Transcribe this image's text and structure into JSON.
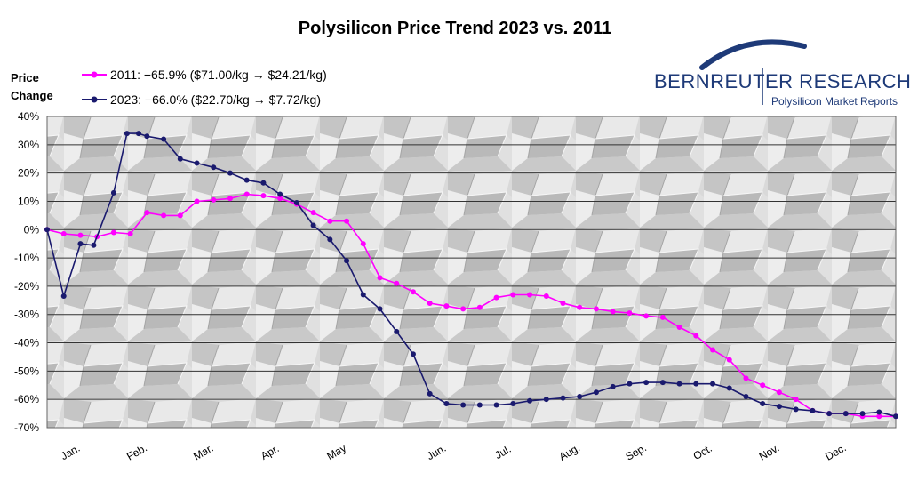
{
  "chart_data": {
    "type": "line",
    "title": "Polysilicon Price Trend 2023 vs. 2011",
    "ylabel_line1": "Price",
    "ylabel_line2": "Change",
    "xlabel": "",
    "x_unit": "week of year (1-52)",
    "y_unit": "percent",
    "ylim": [
      -70,
      40
    ],
    "xlim": [
      1,
      52
    ],
    "grid": true,
    "legend_position": "top-left",
    "ytick_labels": [
      "40%",
      "30%",
      "20%",
      "10%",
      "0%",
      "-10%",
      "-20%",
      "-30%",
      "-40%",
      "-50%",
      "-60%",
      "-70%"
    ],
    "ytick_values": [
      40,
      30,
      20,
      10,
      0,
      -10,
      -20,
      -30,
      -40,
      -50,
      -60,
      -70
    ],
    "categories": [
      "Jan.",
      "Feb.",
      "Mar.",
      "Apr.",
      "May",
      "Jun.",
      "Jul.",
      "Aug.",
      "Sep.",
      "Oct.",
      "Nov.",
      "Dec."
    ],
    "category_positions": [
      2.5,
      6.5,
      10.5,
      14.5,
      18.5,
      24.5,
      28.5,
      32.5,
      36.5,
      40.5,
      44.5,
      48.5
    ],
    "series": [
      {
        "name": "2011",
        "legend": "2011: −65.9% ($71.00/kg → $24.21/kg)",
        "color": "#ff00ff",
        "x": [
          1,
          2,
          3,
          4,
          5,
          6,
          7,
          8,
          9,
          10,
          11,
          12,
          13,
          14,
          15,
          16,
          17,
          18,
          19,
          20,
          21,
          22,
          23,
          24,
          25,
          26,
          27,
          28,
          29,
          30,
          31,
          32,
          33,
          34,
          35,
          36,
          37,
          38,
          39,
          40,
          41,
          42,
          43,
          44,
          45,
          46,
          47,
          48,
          49,
          50,
          51,
          52
        ],
        "values": [
          0,
          -1.5,
          -2,
          -2.5,
          -1,
          -1.5,
          6,
          5,
          5,
          10,
          10.5,
          11,
          12.5,
          12,
          11,
          9,
          6,
          3,
          3,
          -5,
          -17,
          -19,
          -22,
          -26,
          -27,
          -28,
          -27.5,
          -24,
          -23,
          -23,
          -23.5,
          -26,
          -27.5,
          -28,
          -29,
          -29.5,
          -30.5,
          -31,
          -34.5,
          -37.5,
          -42.5,
          -46,
          -52.5,
          -55,
          -57.5,
          -60,
          -64,
          -65,
          -65,
          -66,
          -66,
          -66
        ]
      },
      {
        "name": "2023",
        "legend": "2023: −66.0% ($22.70/kg → $7.72/kg)",
        "color": "#1a1a6e",
        "x": [
          1,
          2,
          3,
          3.8,
          5,
          5.8,
          6.5,
          7,
          8,
          9,
          10,
          11,
          12,
          13,
          14,
          15,
          16,
          17,
          18,
          19,
          20,
          21,
          22,
          23,
          24,
          25,
          26,
          27,
          28,
          29,
          30,
          31,
          32,
          33,
          34,
          35,
          36,
          37,
          38,
          39,
          40,
          41,
          42,
          43,
          44,
          45,
          46,
          47,
          48,
          49,
          50,
          51,
          52
        ],
        "values": [
          0,
          -23.5,
          -5,
          -5.5,
          13,
          34,
          34,
          33,
          32,
          25,
          23.5,
          22,
          20,
          17.5,
          16.5,
          12.5,
          9.5,
          1.5,
          -3.5,
          -11,
          -23,
          -28,
          -36,
          -44,
          -58,
          -61.5,
          -62,
          -62,
          -62,
          -61.5,
          -60.5,
          -60,
          -59.5,
          -59,
          -57.5,
          -55.5,
          -54.5,
          -54,
          -54,
          -54.5,
          -54.5,
          -54.5,
          -56,
          -59,
          -61.5,
          -62.5,
          -63.5,
          -64,
          -65,
          -65,
          -65,
          -64.5,
          -66
        ]
      }
    ]
  },
  "branding": {
    "company": "BERNREUTER RESEARCH",
    "tagline": "Polysilicon Market Reports"
  }
}
